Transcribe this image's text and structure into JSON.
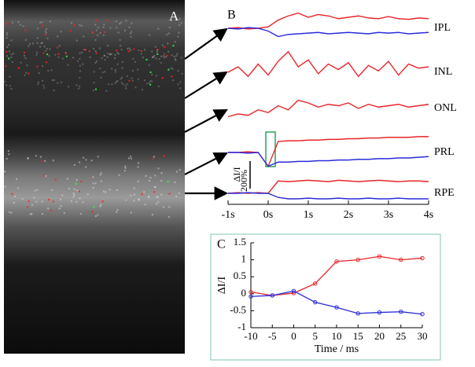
{
  "chart_data": [
    {
      "type": "image",
      "label": "A"
    },
    {
      "type": "traces",
      "label": "B",
      "x": [
        -1,
        -0.75,
        -0.5,
        -0.25,
        0,
        0.25,
        0.5,
        0.75,
        1,
        1.25,
        1.5,
        1.75,
        2,
        2.25,
        2.5,
        2.75,
        3,
        3.25,
        3.5,
        3.75,
        4
      ],
      "xlim": [
        -1,
        4
      ],
      "xticks": [
        {
          "value": -1,
          "label": "-1s"
        },
        {
          "value": 0,
          "label": "0s"
        },
        {
          "value": 1,
          "label": "1s"
        },
        {
          "value": 2,
          "label": "2s"
        },
        {
          "value": 3,
          "label": "3s"
        },
        {
          "value": 4,
          "label": "4s"
        }
      ],
      "scale_bar": {
        "value": 200,
        "label": "200%",
        "unit_label": "ΔI/I"
      },
      "rows": [
        {
          "label": "IPL",
          "series": [
            {
              "color": "#e8262a",
              "values": [
                0,
                5,
                -5,
                0,
                10,
                60,
                90,
                110,
                80,
                100,
                90,
                70,
                80,
                90,
                75,
                70,
                85,
                70,
                65,
                75,
                70
              ]
            },
            {
              "color": "#2b2bd9",
              "values": [
                0,
                -5,
                5,
                0,
                -20,
                -60,
                -45,
                -40,
                -35,
                -30,
                -40,
                -35,
                -30,
                -35,
                -40,
                -30,
                -35,
                -30,
                -40,
                -35,
                -30
              ]
            }
          ]
        },
        {
          "label": "INL",
          "series": [
            {
              "color": "#e8262a",
              "values": [
                0,
                40,
                -30,
                60,
                -20,
                80,
                150,
                40,
                90,
                -10,
                60,
                20,
                70,
                -30,
                50,
                10,
                80,
                -20,
                60,
                30,
                40
              ]
            }
          ]
        },
        {
          "label": "ONL",
          "series": [
            {
              "color": "#e8262a",
              "values": [
                -60,
                -40,
                -50,
                -10,
                -30,
                20,
                -10,
                60,
                40,
                10,
                30,
                20,
                40,
                0,
                30,
                10,
                20,
                30,
                10,
                20,
                30
              ]
            }
          ]
        },
        {
          "label": "PRL",
          "series": [
            {
              "color": "#e8262a",
              "values": [
                0,
                0,
                5,
                0,
                -100,
                80,
                85,
                85,
                90,
                90,
                95,
                95,
                100,
                100,
                105,
                105,
                110,
                110,
                110,
                115,
                115
              ]
            },
            {
              "color": "#2b2bd9",
              "values": [
                0,
                0,
                -5,
                0,
                -100,
                -70,
                -70,
                -65,
                -65,
                -60,
                -60,
                -55,
                -55,
                -50,
                -50,
                -45,
                -45,
                -40,
                -40,
                -35,
                -30
              ]
            }
          ]
        },
        {
          "label": "RPE",
          "series": [
            {
              "color": "#e8262a",
              "values": [
                0,
                5,
                0,
                5,
                0,
                90,
                85,
                90,
                95,
                90,
                85,
                95,
                90,
                85,
                90,
                95,
                90,
                85,
                90,
                90,
                85
              ]
            },
            {
              "color": "#2b2bd9",
              "values": [
                0,
                0,
                5,
                0,
                0,
                -30,
                -40,
                -40,
                -35,
                -40,
                -40,
                -35,
                -40,
                -40,
                -35,
                -40,
                -40,
                -35,
                -40,
                -40,
                -40
              ]
            }
          ]
        }
      ]
    },
    {
      "type": "line",
      "label": "C",
      "ylabel": "ΔI/I",
      "xlabel": "Time / ms",
      "x": [
        -10,
        -5,
        0,
        5,
        10,
        15,
        20,
        25,
        30
      ],
      "xlim": [
        -10,
        30
      ],
      "xticks": [
        -10,
        -5,
        0,
        5,
        10,
        15,
        20,
        25,
        30
      ],
      "ylim": [
        -1,
        1.5
      ],
      "yticks": [
        1.5,
        1,
        0.5,
        0,
        -0.5,
        -1
      ],
      "series": [
        {
          "color": "#e8262a",
          "values": [
            0.05,
            -0.05,
            0.02,
            0.3,
            0.95,
            1.0,
            1.1,
            1.0,
            1.05
          ]
        },
        {
          "color": "#2b2bd9",
          "values": [
            -0.08,
            -0.05,
            0.08,
            -0.25,
            -0.4,
            -0.58,
            -0.55,
            -0.53,
            -0.6
          ]
        }
      ]
    }
  ]
}
